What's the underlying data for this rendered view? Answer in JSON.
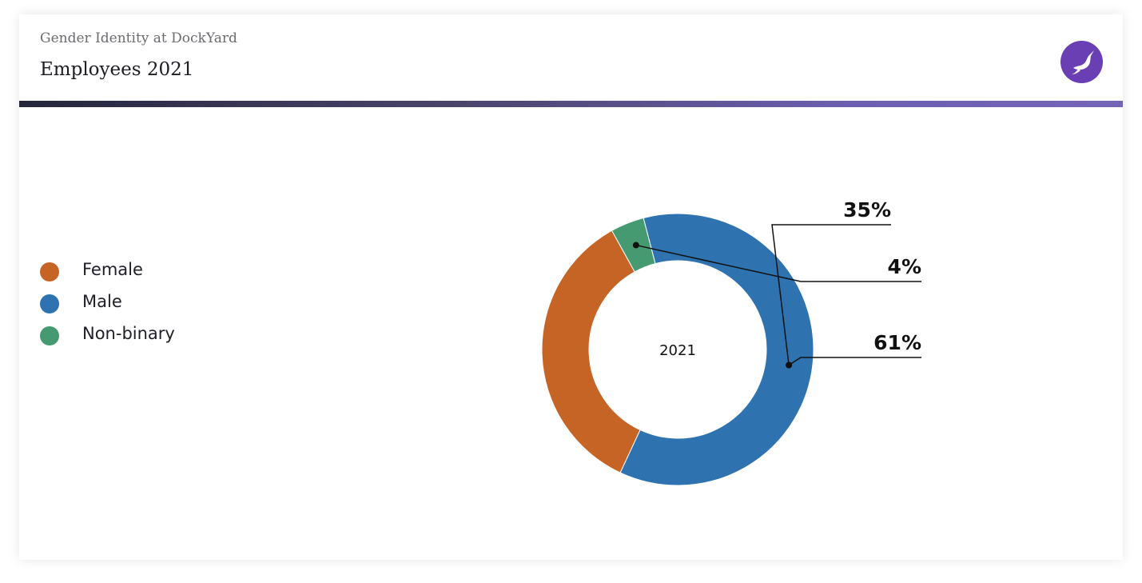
{
  "header": {
    "subtitle": "Gender Identity at DockYard",
    "title": "Employees 2021",
    "logo_icon": "narwhal-logo-icon",
    "logo_color": "#6a3fb3"
  },
  "chart_data": {
    "type": "pie",
    "donut": true,
    "center_label": "2021",
    "categories": [
      "Female",
      "Male",
      "Non-binary"
    ],
    "values": [
      35,
      61,
      4
    ],
    "value_labels": [
      "35%",
      "61%",
      "4%"
    ],
    "colors": [
      "#c66426",
      "#2e72b0",
      "#459a72"
    ],
    "legend_position": "left"
  }
}
